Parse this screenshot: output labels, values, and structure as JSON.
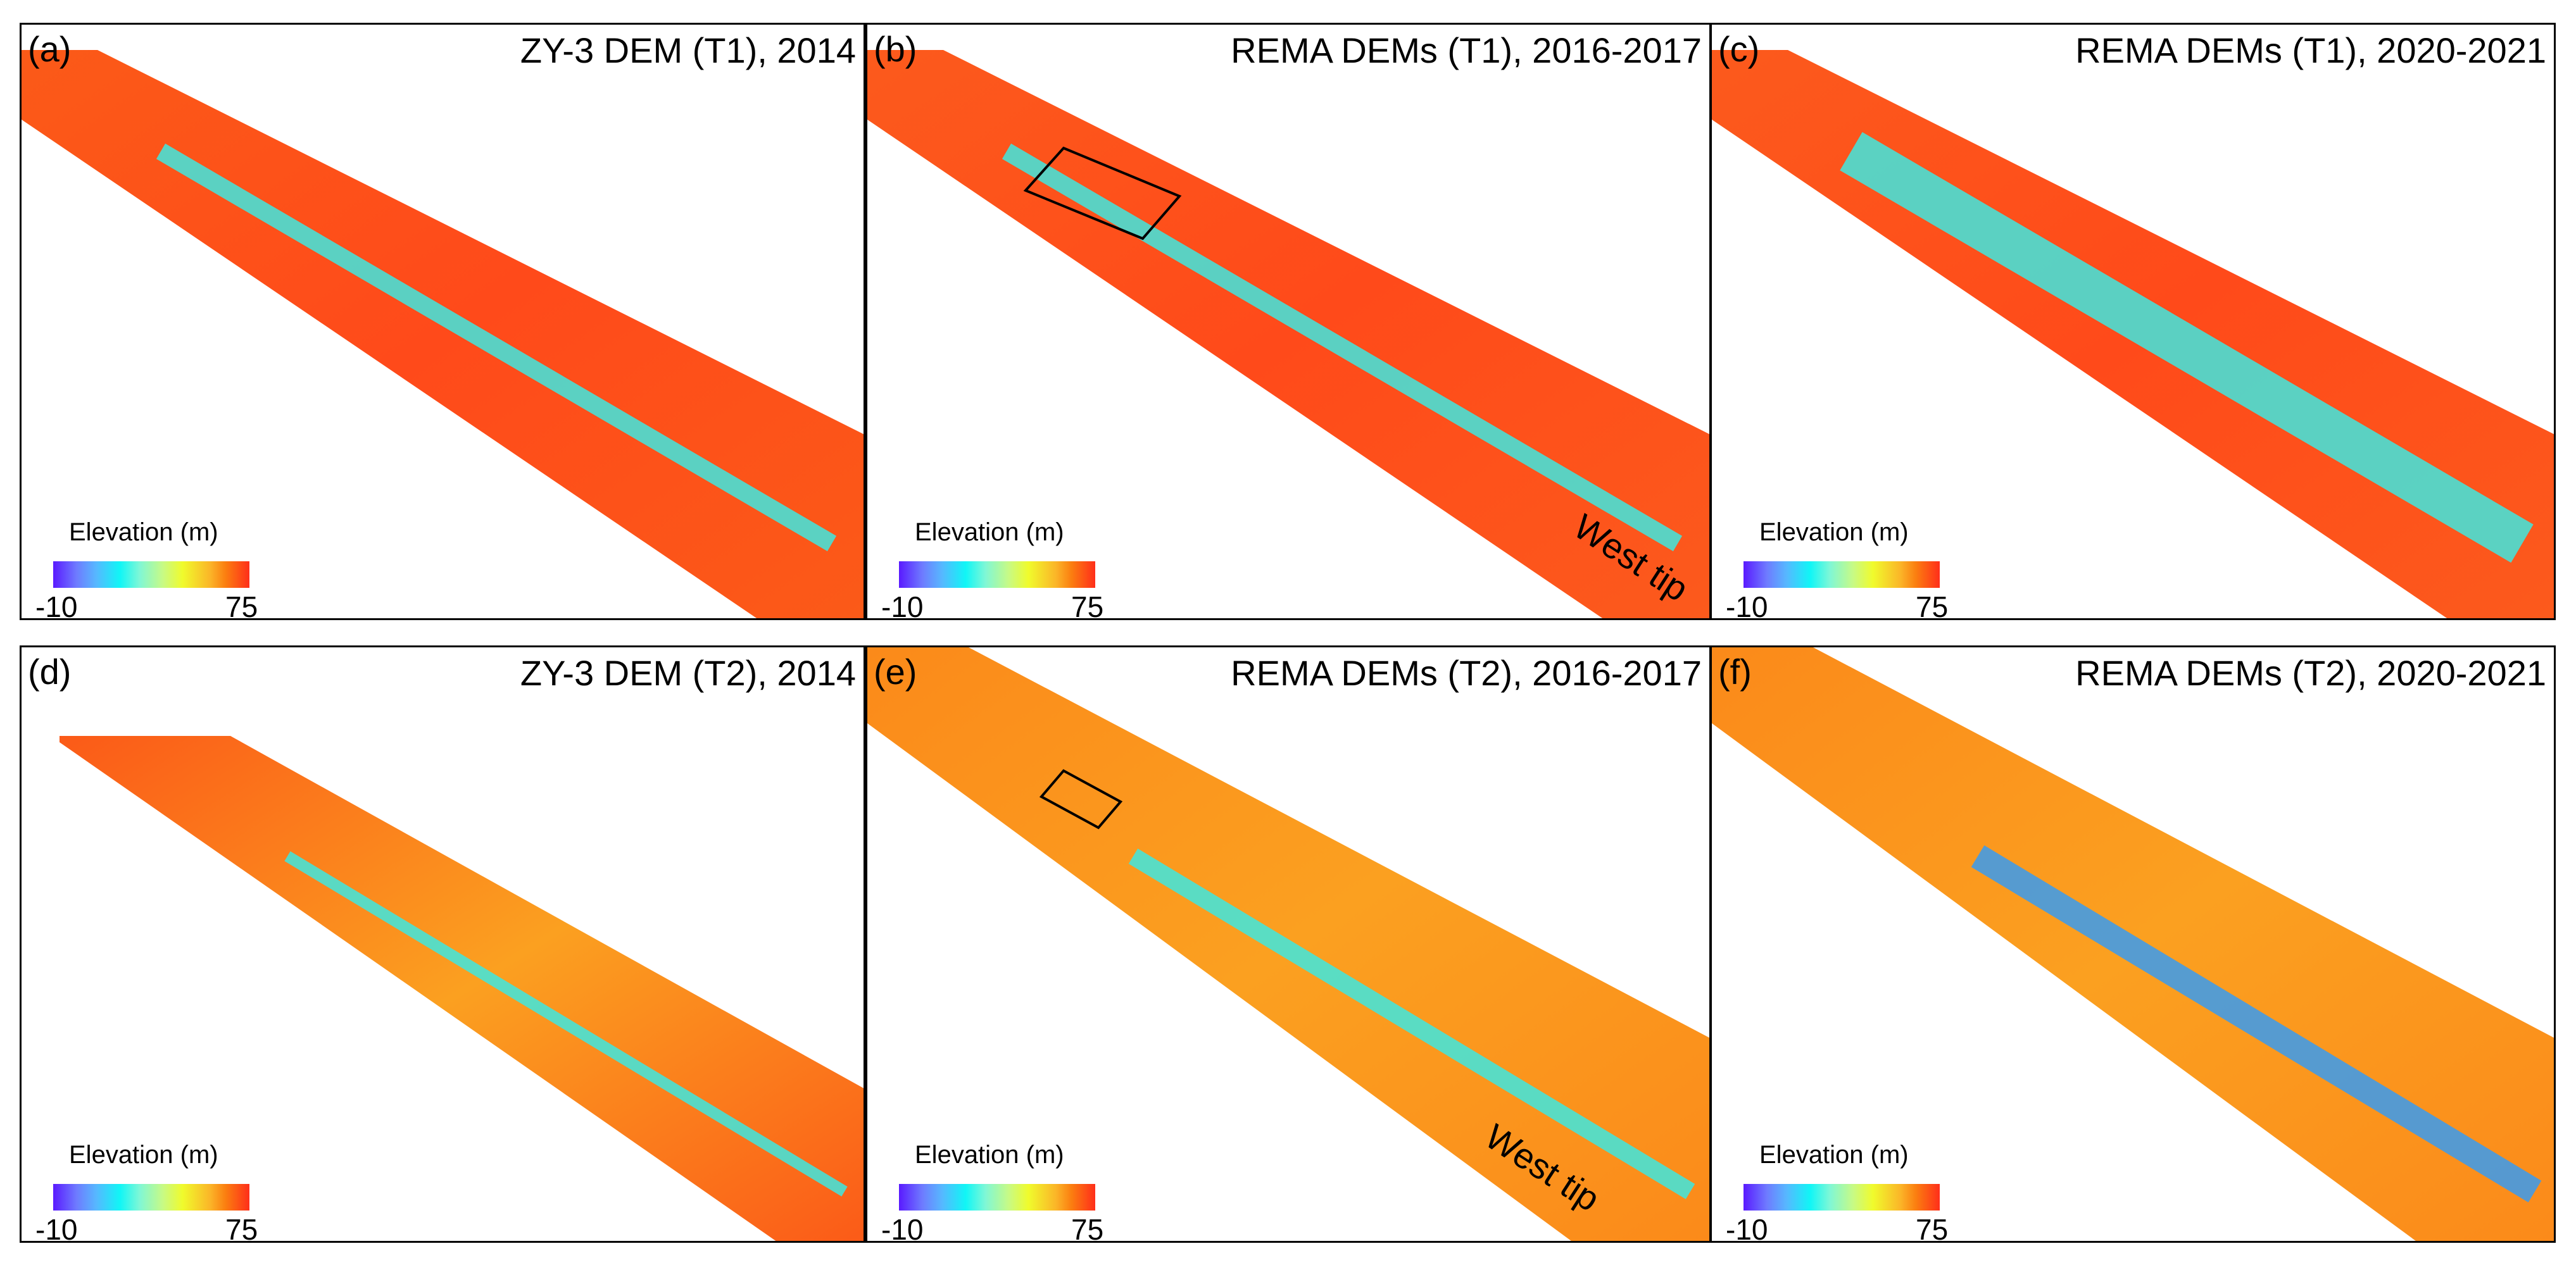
{
  "colorbar": {
    "label": "Elevation (m)",
    "min": "-10",
    "max": "75",
    "colors": [
      "#5a1aff",
      "#10f6f6",
      "#f0fb2c",
      "#fb7d10",
      "#ff2e1a"
    ]
  },
  "panels": [
    {
      "letter": "(a)",
      "title": "ZY-3 DEM (T1), 2014"
    },
    {
      "letter": "(b)",
      "title": "REMA DEMs (T1), 2016-2017",
      "annotation": "West tip"
    },
    {
      "letter": "(c)",
      "title": "REMA DEMs (T1), 2020-2021"
    },
    {
      "letter": "(d)",
      "title": "ZY-3 DEM (T2), 2014"
    },
    {
      "letter": "(e)",
      "title": "REMA DEMs (T2), 2016-2017",
      "annotation": "West tip"
    },
    {
      "letter": "(f)",
      "title": "REMA DEMs (T2), 2020-2021"
    }
  ]
}
